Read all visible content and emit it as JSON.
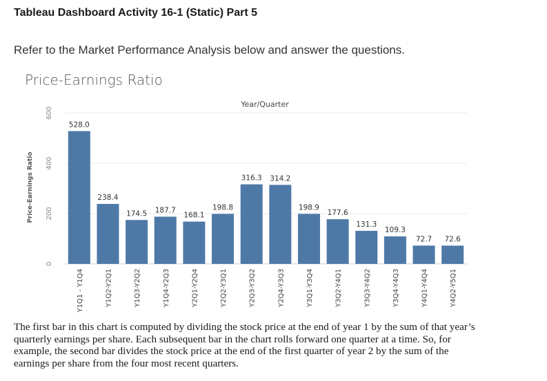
{
  "page": {
    "title": "Tableau Dashboard Activity 16-1 (Static) Part 5",
    "instruction": "Refer to the Market Performance Analysis below and answer the questions.",
    "caption": "The first bar in this chart is computed by dividing the stock price at the end of year 1 by the sum of that year’s quarterly earnings per share. Each subsequent bar in the chart rolls forward one quarter at a time. So, for example, the second bar divides the stock price at the end of the first quarter of year 2 by the sum of the earnings per share from the four most recent quarters."
  },
  "colors": {
    "bar": "#4e79a7",
    "grid": "#e8e8e8",
    "axis": "#cccccc"
  },
  "chart_data": {
    "type": "bar",
    "title": "Price-Earnings Ratio",
    "x_header": "Year/Quarter",
    "ylabel": "Price-Earnings Ratio",
    "xlabel": "",
    "ylim": [
      0,
      600
    ],
    "yticks": [
      0,
      200,
      400,
      600
    ],
    "grid": true,
    "categories": [
      "Y1Q1 - Y1Q4",
      "Y1Q2-Y2Q1",
      "Y1Q3-Y2Q2",
      "Y1Q4-Y2Q3",
      "Y2Q1-Y2Q4",
      "Y2Q2-Y3Q1",
      "Y2Q3-Y3Q2",
      "Y2Q4-Y3Q3",
      "Y3Q1-Y3Q4",
      "Y3Q2-Y4Q1",
      "Y3Q3-Y4Q2",
      "Y3Q4-Y4Q3",
      "Y4Q1-Y4Q4",
      "Y4Q2-Y5Q1"
    ],
    "values": [
      528.0,
      238.4,
      174.5,
      187.7,
      168.1,
      198.8,
      316.3,
      314.2,
      198.9,
      177.6,
      131.3,
      109.3,
      72.7,
      72.6
    ],
    "labels": [
      "528.0",
      "238.4",
      "174.5",
      "187.7",
      "168.1",
      "198.8",
      "316.3",
      "314.2",
      "198.9",
      "177.6",
      "131.3",
      "109.3",
      "72.7",
      "72.6"
    ]
  }
}
